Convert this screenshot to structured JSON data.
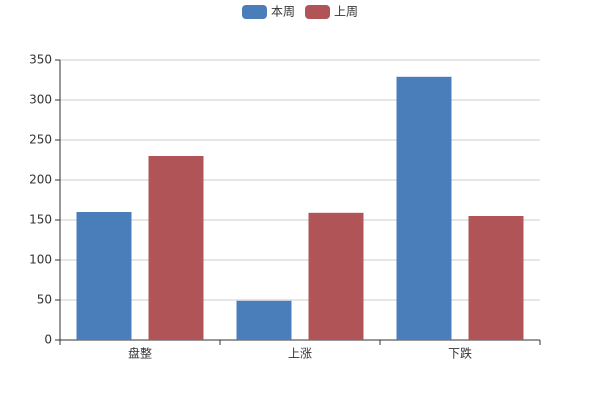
{
  "chart_data": {
    "type": "bar",
    "categories": [
      "盘整",
      "上涨",
      "下跌"
    ],
    "series": [
      {
        "name": "本周",
        "color": "#4a7ebb",
        "values": [
          160,
          49,
          329
        ]
      },
      {
        "name": "上周",
        "color": "#b05457",
        "values": [
          230,
          159,
          155
        ]
      }
    ],
    "ylim": [
      0,
      350
    ],
    "yticks": [
      0,
      50,
      100,
      150,
      200,
      250,
      300,
      350
    ],
    "grid": true,
    "legend": "top"
  }
}
